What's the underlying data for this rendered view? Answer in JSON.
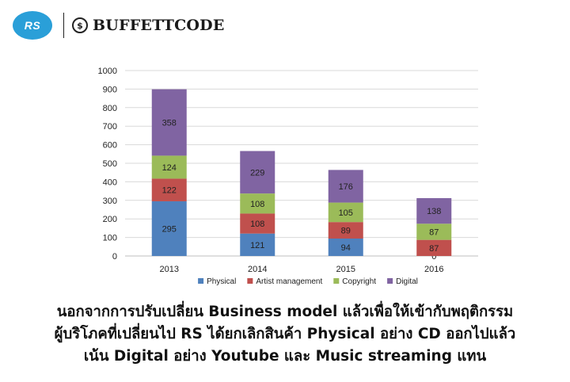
{
  "brand": {
    "rs_logo_text": "RS",
    "bc_icon_glyph": "$",
    "site_name": "BUFFETTCODE",
    "rs_color": "#2a9fd8"
  },
  "chart_data": {
    "type": "bar",
    "stacked": true,
    "categories": [
      "2013",
      "2014",
      "2015",
      "2016"
    ],
    "series": [
      {
        "name": "Physical",
        "color": "#4f81bd",
        "values": [
          295,
          121,
          94,
          0
        ]
      },
      {
        "name": "Artist management",
        "color": "#c0504d",
        "values": [
          122,
          108,
          89,
          87
        ]
      },
      {
        "name": "Copyright",
        "color": "#9bbb59",
        "values": [
          124,
          108,
          105,
          87
        ]
      },
      {
        "name": "Digital",
        "color": "#8064a2",
        "values": [
          358,
          229,
          176,
          138
        ]
      }
    ],
    "ylim": [
      0,
      1000
    ],
    "yticks": [
      0,
      100,
      200,
      300,
      400,
      500,
      600,
      700,
      800,
      900,
      1000
    ],
    "grid": true,
    "legend": "bottom",
    "title": "",
    "xlabel": "",
    "ylabel": ""
  },
  "caption": {
    "line1": "นอกจากการปรับเปลี่ยน Business model แล้วเพื่อให้เข้ากับพฤติกรรม",
    "line2": "ผู้บริโภคที่เปลี่ยนไป RS ได้ยกเลิกสินค้า Physical อย่าง CD ออกไปแล้ว",
    "line3": "เน้น Digital อย่าง Youtube และ Music streaming แทน"
  }
}
